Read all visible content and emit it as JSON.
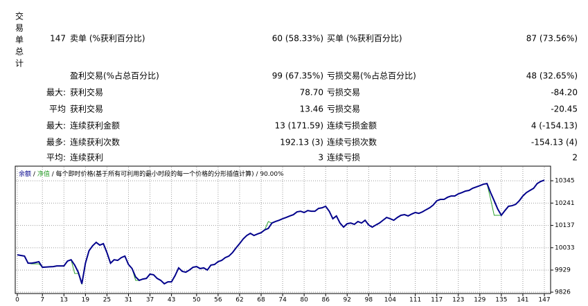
{
  "side_label": [
    "交",
    "易",
    "单",
    "总",
    "计"
  ],
  "table": {
    "rows": [
      [
        "147",
        "卖单 (%获利百分比)",
        "60 (58.33%)",
        "买单 (%获利百分比)",
        "87 (73.56%)"
      ],
      [
        "",
        "盈利交易(%占总百分比)",
        "99 (67.35%)",
        "亏损交易(%占总百分比)",
        "48 (32.65%)"
      ],
      [
        "最大:",
        "获利交易",
        "78.70",
        "亏损交易",
        "-84.20"
      ],
      [
        "平均",
        "获利交易",
        "13.46",
        "亏损交易",
        "-20.45"
      ],
      [
        "最大:",
        "连续获利金额",
        "13 (171.59)",
        "连续亏损金额",
        "4 (-154.13)"
      ],
      [
        "最多:",
        "连续获利次数",
        "192.13 (3)",
        "连续亏损次数",
        "-154.13 (4)"
      ],
      [
        "平均:",
        "连续获利",
        "3",
        "连续亏损",
        "2"
      ]
    ]
  },
  "chart_data": {
    "type": "line",
    "separator": "/",
    "subtitle": "/ 每个即时价格(基于所有可利用的最小时段的每一个价格的分形插值计算) / 90.00%",
    "x": [
      0,
      1,
      2,
      3,
      4,
      5,
      6,
      7,
      8,
      9,
      10,
      11,
      12,
      13,
      14,
      15,
      16,
      17,
      18,
      19,
      20,
      21,
      22,
      23,
      24,
      25,
      26,
      27,
      28,
      29,
      30,
      31,
      32,
      33,
      34,
      35,
      36,
      37,
      38,
      39,
      40,
      41,
      42,
      43,
      44,
      45,
      46,
      47,
      48,
      49,
      50,
      51,
      52,
      53,
      54,
      55,
      56,
      57,
      58,
      59,
      60,
      61,
      62,
      63,
      64,
      65,
      66,
      67,
      68,
      69,
      70,
      71,
      72,
      73,
      74,
      75,
      76,
      77,
      78,
      79,
      80,
      81,
      82,
      83,
      84,
      85,
      86,
      87,
      88,
      89,
      90,
      91,
      92,
      93,
      94,
      95,
      96,
      97,
      98,
      99,
      100,
      101,
      102,
      103,
      104,
      105,
      106,
      107,
      108,
      109,
      110,
      111,
      112,
      113,
      114,
      115,
      116,
      117,
      118,
      119,
      120,
      121,
      122,
      123,
      124,
      125,
      126,
      127,
      128,
      129,
      130,
      131,
      132,
      133,
      134,
      135,
      136,
      137,
      138,
      139,
      140,
      141,
      142,
      143,
      144,
      145,
      146,
      147
    ],
    "series": [
      {
        "name": "余额",
        "color": "#00008b",
        "values": [
          10000,
          9997,
          9994,
          9961,
          9961,
          9964,
          9968,
          9942,
          9943,
          9944,
          9945,
          9948,
          9948,
          9948,
          9971,
          9977,
          9952,
          9919,
          9865,
          9961,
          10019,
          10042,
          10058,
          10045,
          10052,
          10010,
          9961,
          9977,
          9974,
          9987,
          9994,
          9955,
          9936,
          9897,
          9881,
          9887,
          9890,
          9910,
          9907,
          9890,
          9881,
          9865,
          9874,
          9874,
          9903,
          9939,
          9923,
          9919,
          9929,
          9942,
          9945,
          9936,
          9939,
          9929,
          9952,
          9955,
          9968,
          9974,
          9987,
          9994,
          10010,
          10032,
          10052,
          10074,
          10090,
          10100,
          10090,
          10097,
          10103,
          10116,
          10123,
          10148,
          10155,
          10161,
          10168,
          10174,
          10181,
          10187,
          10200,
          10203,
          10197,
          10206,
          10203,
          10203,
          10216,
          10219,
          10226,
          10203,
          10168,
          10181,
          10148,
          10129,
          10145,
          10148,
          10142,
          10155,
          10148,
          10161,
          10139,
          10129,
          10139,
          10148,
          10161,
          10174,
          10168,
          10161,
          10174,
          10184,
          10187,
          10181,
          10190,
          10197,
          10193,
          10200,
          10210,
          10219,
          10232,
          10252,
          10258,
          10258,
          10268,
          10274,
          10274,
          10284,
          10290,
          10297,
          10300,
          10310,
          10316,
          10322,
          10329,
          10332,
          10290,
          10252,
          10213,
          10184,
          10206,
          10226,
          10229,
          10235,
          10252,
          10274,
          10290,
          10300,
          10310,
          10332,
          10342,
          10348
        ]
      },
      {
        "name": "净值",
        "color": "#2ca02c",
        "values": [
          10000,
          9997,
          9994,
          9961,
          9958,
          9958,
          9958,
          9942,
          9943,
          9944,
          9945,
          9948,
          9948,
          9948,
          9971,
          9977,
          9913,
          9913,
          9865,
          9961,
          10019,
          10042,
          10058,
          10045,
          10052,
          10010,
          9961,
          9977,
          9974,
          9987,
          9994,
          9955,
          9936,
          9881,
          9881,
          9887,
          9890,
          9910,
          9907,
          9890,
          9881,
          9865,
          9874,
          9874,
          9903,
          9939,
          9923,
          9919,
          9929,
          9942,
          9945,
          9936,
          9939,
          9929,
          9952,
          9955,
          9968,
          9974,
          9987,
          9994,
          10010,
          10032,
          10052,
          10074,
          10090,
          10100,
          10090,
          10097,
          10103,
          10116,
          10155,
          10148,
          10155,
          10161,
          10168,
          10174,
          10181,
          10187,
          10200,
          10203,
          10197,
          10206,
          10203,
          10203,
          10216,
          10219,
          10226,
          10203,
          10168,
          10181,
          10148,
          10129,
          10145,
          10148,
          10142,
          10155,
          10148,
          10161,
          10139,
          10129,
          10139,
          10148,
          10161,
          10174,
          10168,
          10161,
          10174,
          10184,
          10187,
          10181,
          10190,
          10197,
          10193,
          10200,
          10210,
          10219,
          10232,
          10252,
          10258,
          10258,
          10268,
          10274,
          10274,
          10284,
          10290,
          10297,
          10300,
          10310,
          10316,
          10322,
          10329,
          10332,
          10260,
          10184,
          10184,
          10184,
          10206,
          10226,
          10229,
          10235,
          10252,
          10274,
          10290,
          10300,
          10310,
          10332,
          10342,
          10348
        ]
      }
    ],
    "xlim": [
      0,
      147
    ],
    "xticks": [
      0,
      7,
      13,
      19,
      25,
      31,
      37,
      43,
      50,
      56,
      62,
      68,
      74,
      80,
      86,
      92,
      98,
      104,
      111,
      117,
      123,
      129,
      135,
      141,
      147
    ],
    "ylim": [
      9826,
      10413
    ],
    "yticks": [
      9826,
      9929,
      10033,
      10137,
      10241,
      10345
    ],
    "grid": true
  }
}
